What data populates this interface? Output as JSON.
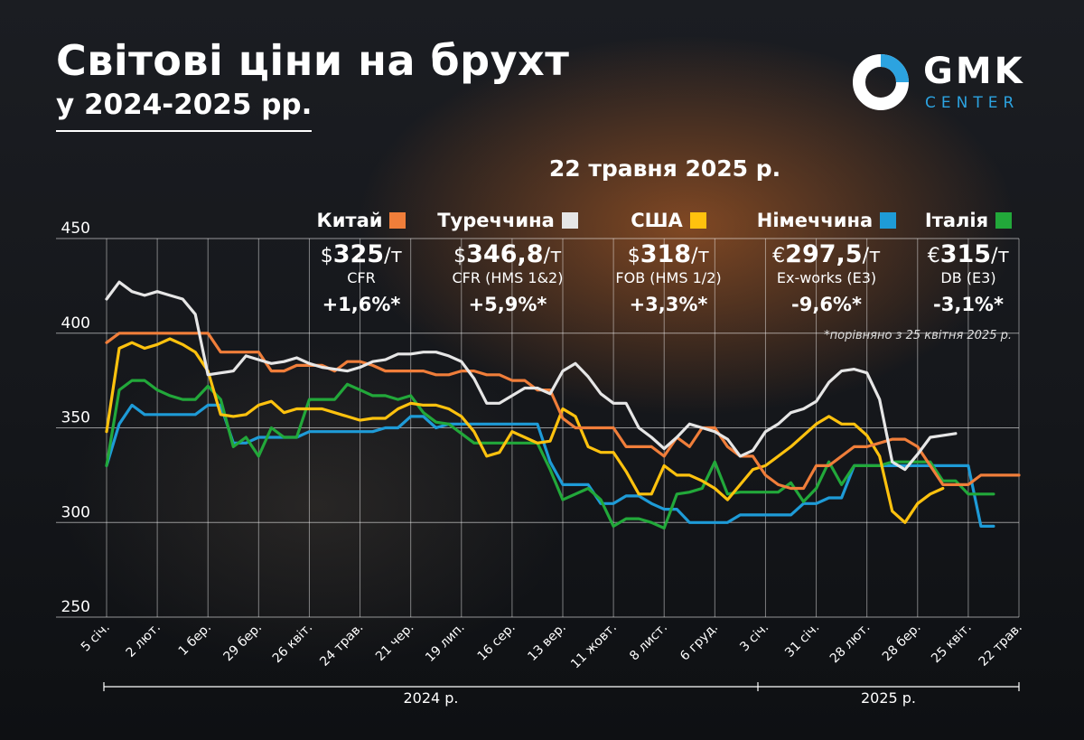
{
  "header": {
    "title": "Світові ціни на брухт",
    "subtitle": "у 2024-2025 рр.",
    "date": "22 травня 2025 р.",
    "footnote": "*порівняно з 25 квітня 2025 р."
  },
  "logo": {
    "name": "GMK",
    "sub": "CENTER"
  },
  "legend": [
    {
      "country": "Китай",
      "color": "#f07e3a",
      "currency": "$",
      "value": "325",
      "unit": "/т",
      "basis": "CFR",
      "change": "+1,6%*"
    },
    {
      "country": "Туреччина",
      "color": "#e6e6e6",
      "currency": "$",
      "value": "346,8",
      "unit": "/т",
      "basis": "CFR (HMS 1&2)",
      "change": "+5,9%*"
    },
    {
      "country": "США",
      "color": "#ffc20e",
      "currency": "$",
      "value": "318",
      "unit": "/т",
      "basis": "FOB (HMS 1/2)",
      "change": "+3,3%*"
    },
    {
      "country": "Німеччина",
      "color": "#1e9bd7",
      "currency": "€",
      "value": "297,5",
      "unit": "/т",
      "basis": "Ex-works (E3)",
      "change": "-9,6%*"
    },
    {
      "country": "Італія",
      "color": "#22a83a",
      "currency": "€",
      "value": "315",
      "unit": "/т",
      "basis": "DB (E3)",
      "change": "-3,1%*"
    }
  ],
  "chart_data": {
    "type": "line",
    "ylim": [
      250,
      450
    ],
    "yticks": [
      250,
      300,
      350,
      400,
      450
    ],
    "xticks": [
      "5 січ.",
      "2 лют.",
      "1 бер.",
      "29 бер.",
      "26 квіт.",
      "24 трав.",
      "21 чер.",
      "19 лип.",
      "16 сер.",
      "13 вер.",
      "11 жовт.",
      "8 лист.",
      "6 груд.",
      "3 січ.",
      "31 січ.",
      "28 лют.",
      "28 бер.",
      "25 квіт.",
      "22 трав."
    ],
    "year_labels": [
      "2024 р.",
      "2025 р."
    ],
    "x_weeks": [
      0,
      1,
      2,
      3,
      4,
      5,
      6,
      7,
      8,
      9,
      10,
      11,
      12,
      13,
      14,
      15,
      16,
      17,
      18,
      19,
      20,
      21,
      22,
      23,
      24,
      25,
      26,
      27,
      28,
      29,
      30,
      31,
      32,
      33,
      34,
      35,
      36,
      37,
      38,
      39,
      40,
      41,
      42,
      43,
      44,
      45,
      46,
      47,
      48,
      49,
      50,
      51,
      52,
      53,
      54,
      55,
      56,
      57,
      58,
      59,
      60,
      61,
      62,
      63,
      64,
      65,
      66,
      67,
      68,
      69,
      70,
      71,
      72
    ],
    "series": [
      {
        "name": "Китай",
        "color": "#f07e3a",
        "values": [
          395,
          400,
          400,
          400,
          400,
          400,
          400,
          400,
          400,
          390,
          390,
          390,
          390,
          380,
          380,
          383,
          383,
          383,
          380,
          385,
          385,
          383,
          380,
          380,
          380,
          380,
          378,
          378,
          380,
          380,
          378,
          378,
          375,
          375,
          370,
          370,
          355,
          350,
          350,
          350,
          350,
          340,
          340,
          340,
          335,
          345,
          340,
          350,
          350,
          340,
          335,
          335,
          325,
          320,
          318,
          318,
          330,
          330,
          335,
          340,
          340,
          342,
          344,
          344,
          340,
          330,
          320,
          320,
          320,
          325,
          325,
          325,
          325
        ]
      },
      {
        "name": "Туреччина",
        "color": "#e6e6e6",
        "values": [
          418,
          427,
          422,
          420,
          422,
          420,
          418,
          410,
          378,
          379,
          380,
          388,
          386,
          384,
          385,
          387,
          384,
          382,
          381,
          380,
          382,
          385,
          386,
          389,
          389,
          390,
          390,
          388,
          385,
          376,
          363,
          363,
          367,
          371,
          371,
          368,
          380,
          384,
          377,
          368,
          363,
          363,
          350,
          345,
          339,
          345,
          352,
          350,
          348,
          344,
          335,
          338,
          348,
          352,
          358,
          360,
          364,
          374,
          380,
          381,
          379,
          365,
          332,
          328,
          336,
          345,
          346,
          347
        ]
      },
      {
        "name": "США",
        "color": "#ffc20e",
        "values": [
          348,
          392,
          395,
          392,
          394,
          397,
          394,
          390,
          380,
          357,
          356,
          357,
          362,
          364,
          358,
          360,
          360,
          360,
          358,
          356,
          354,
          355,
          355,
          360,
          363,
          362,
          362,
          360,
          356,
          348,
          335,
          337,
          348,
          345,
          342,
          343,
          360,
          356,
          340,
          337,
          337,
          327,
          315,
          315,
          330,
          325,
          325,
          322,
          318,
          312,
          320,
          328,
          330,
          335,
          340,
          346,
          352,
          356,
          352,
          352,
          346,
          335,
          306,
          300,
          310,
          315,
          318
        ]
      },
      {
        "name": "Німеччина",
        "color": "#1e9bd7",
        "values": [
          330,
          352,
          362,
          357,
          357,
          357,
          357,
          357,
          362,
          362,
          342,
          342,
          345,
          345,
          345,
          345,
          348,
          348,
          348,
          348,
          348,
          348,
          350,
          350,
          356,
          356,
          350,
          352,
          352,
          352,
          352,
          352,
          352,
          352,
          352,
          332,
          320,
          320,
          320,
          310,
          310,
          314,
          314,
          310,
          307,
          307,
          300,
          300,
          300,
          300,
          304,
          304,
          304,
          304,
          304,
          310,
          310,
          313,
          313,
          330,
          330,
          330,
          330,
          330,
          330,
          330,
          330,
          330,
          330,
          298,
          298
        ]
      },
      {
        "name": "Італія",
        "color": "#22a83a",
        "values": [
          330,
          370,
          375,
          375,
          370,
          367,
          365,
          365,
          372,
          365,
          340,
          345,
          335,
          350,
          345,
          345,
          365,
          365,
          365,
          373,
          370,
          367,
          367,
          365,
          367,
          358,
          353,
          352,
          347,
          342,
          342,
          342,
          342,
          342,
          342,
          328,
          312,
          315,
          318,
          312,
          298,
          302,
          302,
          300,
          297,
          315,
          316,
          318,
          332,
          315,
          316,
          316,
          316,
          316,
          321,
          311,
          318,
          332,
          320,
          330,
          330,
          330,
          332,
          332,
          332,
          332,
          322,
          322,
          315,
          315,
          315
        ]
      }
    ]
  }
}
